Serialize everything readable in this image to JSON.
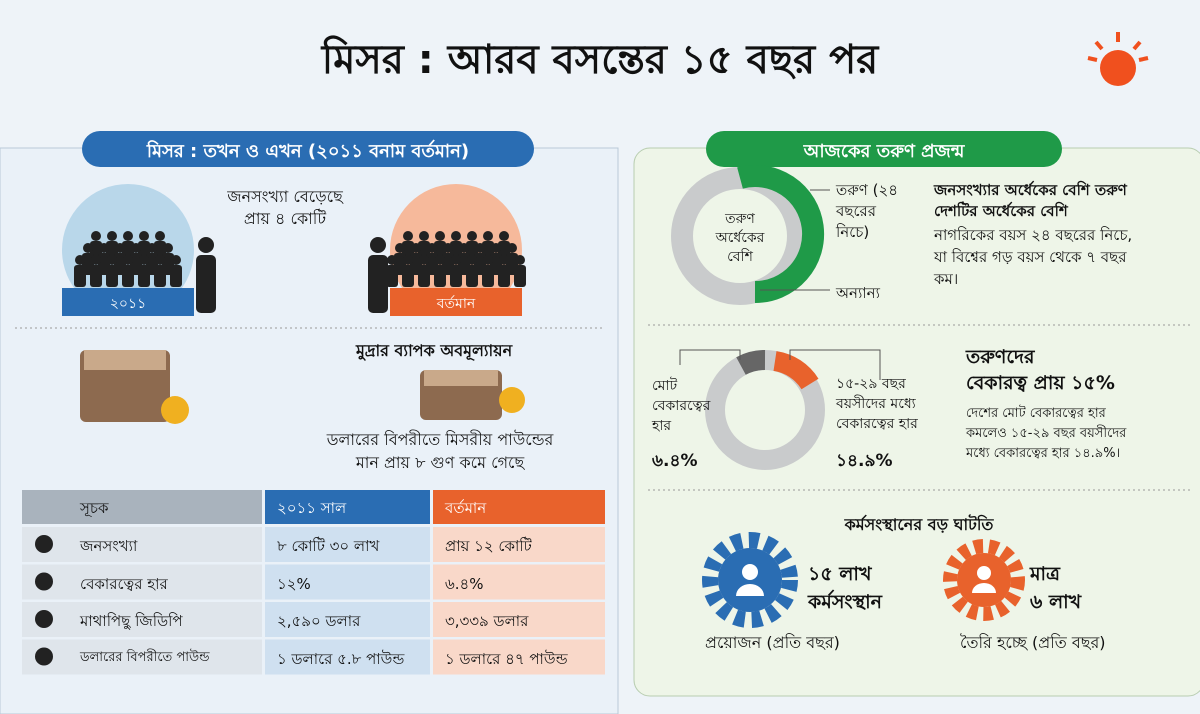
{
  "title": "মিসর : আরব বসন্তের ১৫ বছর পর",
  "left": {
    "heading": "মিসর : তখন ও এখন (২০১১ বনাম বর্তমান)",
    "population": {
      "note": [
        "জনসংখ্যা বেড়েছে",
        "প্রায় ৪ কোটি"
      ],
      "label_then": "২০১১",
      "label_now": "বর্তমান"
    },
    "currency": {
      "title": "মুদ্রার ব্যাপক অবমূল্যায়ন",
      "text": [
        "ডলারের বিপরীতে মিসরীয় পাউন্ডের",
        "মান প্রায় ৮ গুণ কমে গেছে"
      ]
    },
    "table": {
      "header": [
        "সূচক",
        "২০১১ সাল",
        "বর্তমান"
      ],
      "rows": [
        [
          "জনসংখ্যা",
          "৮ কোটি ৩০ লাখ",
          "প্রায় ১২ কোটি"
        ],
        [
          "বেকারত্বের হার",
          "১২%",
          "৬.৪%"
        ],
        [
          "মাথাপিছু জিডিপি",
          "২,৫৯০ ডলার",
          "৩,৩৩৯ ডলার"
        ],
        [
          "ডলারের বিপরীতে পাউন্ড",
          "১ ডলারে ৫.৮ পাউন্ড",
          "১ ডলারে ৪৭ পাউন্ড"
        ]
      ]
    }
  },
  "right": {
    "heading": "আজকের তরুণ প্রজন্ম",
    "youth": {
      "center": [
        "তরুণ",
        "অর্ধেকের",
        "বেশি"
      ],
      "legend_young": [
        "তরুণ (২৪",
        "বছরের",
        "নিচে)"
      ],
      "legend_other": "অন্যান্য",
      "headline": [
        "জনসংখ্যার অর্ধেকের বেশি তরুণ",
        "দেশটির অর্ধেকের বেশি"
      ],
      "text": [
        "নাগরিকের বয়স ২৪ বছরের নিচে,",
        "যা বিশ্বের গড় বয়স থেকে ৭ বছর",
        "কম।"
      ]
    },
    "unemployment": {
      "total_label": [
        "মোট",
        "বেকারত্বের",
        "হার"
      ],
      "total_value": "৬.৪%",
      "youth_label": [
        "১৫-২৯ বছর",
        "বয়সীদের মধ্যে",
        "বেকারত্বের হার"
      ],
      "youth_value": "১৪.৯%",
      "headline": [
        "তরুণদের",
        "বেকারত্ব প্রায় ১৫%"
      ],
      "text": [
        "দেশের মোট বেকারত্বের হার",
        "কমলেও ১৫-২৯ বছর বয়সীদের",
        "মধ্যে বেকারত্বের হার ১৪.৯%।"
      ]
    },
    "jobs": {
      "title": "কর্মসংস্থানের বড় ঘাটতি",
      "need": [
        "১৫ লাখ",
        "কর্মসংস্থান"
      ],
      "need_caption": "প্রয়োজন (প্রতি বছর)",
      "made": [
        "মাত্র",
        "৬ লাখ"
      ],
      "made_caption": "তৈরি হচ্ছে (প্রতি বছর)"
    }
  }
}
